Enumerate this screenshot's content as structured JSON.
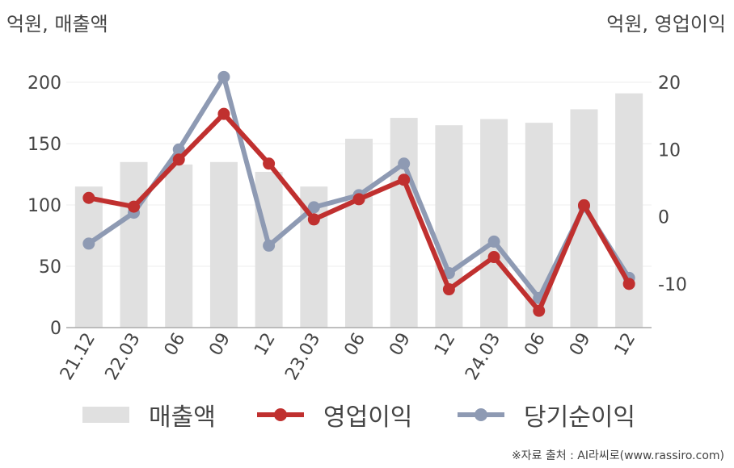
{
  "colors": {
    "revenue": "#e0e0e0",
    "operating_profit": "#c0302f",
    "net_income": "#8e9ab3"
  },
  "left_unit_label": "억원, 매출액",
  "right_unit_label": "억원, 영업이익",
  "source_text": "※자료 출처 : AI라씨로(www.rassiro.com)",
  "chart_data": {
    "type": "bar+line",
    "categories": [
      "21.12",
      "22.03",
      "06",
      "09",
      "12",
      "23.03",
      "06",
      "09",
      "12",
      "24.03",
      "06",
      "09",
      "12"
    ],
    "left_axis": {
      "label": "억원, 매출액",
      "ylim": [
        0,
        200
      ],
      "ticks": [
        0,
        50,
        100,
        150,
        200
      ]
    },
    "right_axis": {
      "label": "억원, 영업이익",
      "ylim": [
        -16.5,
        20
      ],
      "ticks": [
        -10,
        0,
        10,
        20
      ]
    },
    "series": [
      {
        "name": "매출액",
        "type": "bar",
        "axis": "left",
        "values": [
          115,
          135,
          133,
          135,
          127,
          115,
          154,
          171,
          165,
          170,
          167,
          178,
          191
        ]
      },
      {
        "name": "영업이익",
        "type": "line",
        "axis": "right",
        "values": [
          2.8,
          1.5,
          8.5,
          15.3,
          7.9,
          -0.4,
          2.6,
          5.5,
          -10.8,
          -6.0,
          -14.0,
          1.7,
          -10.0
        ]
      },
      {
        "name": "당기순이익",
        "type": "line",
        "axis": "right",
        "values": [
          -4.0,
          0.6,
          10.0,
          20.8,
          -4.3,
          1.4,
          3.2,
          7.9,
          -8.4,
          -3.7,
          -12.1,
          1.5,
          -9.1
        ]
      }
    ],
    "grid": true,
    "legend_position": "bottom"
  }
}
